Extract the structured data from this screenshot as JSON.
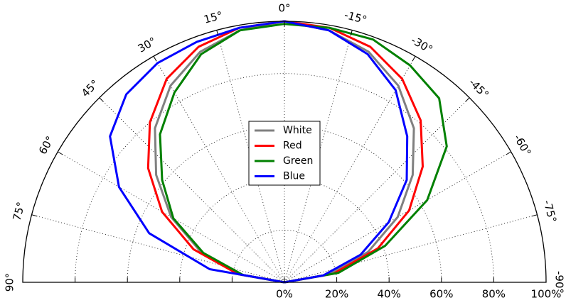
{
  "chart_data": {
    "type": "polar",
    "title": "",
    "angle_range_deg": [
      -90,
      90
    ],
    "radial_range_percent": [
      0,
      100
    ],
    "angle_ticks": [
      "90°",
      "75°",
      "60°",
      "45°",
      "30°",
      "15°",
      "0°",
      "-15°",
      "-30°",
      "-45°",
      "-60°",
      "-75°",
      "-90°"
    ],
    "radial_ticks": [
      "0%",
      "20%",
      "40%",
      "60%",
      "80%",
      "100%"
    ],
    "grid": true,
    "legend_position": "center",
    "series": [
      {
        "name": "White",
        "color": "#808080",
        "theta": [
          -90,
          -80,
          -70,
          -60,
          -50,
          -40,
          -30,
          -20,
          -10,
          0,
          10,
          20,
          30,
          40,
          50,
          60,
          70,
          80,
          90
        ],
        "r": [
          0,
          17,
          34,
          50,
          64,
          77,
          87,
          94,
          98,
          100,
          98,
          94,
          87,
          77,
          64,
          50,
          34,
          17,
          0
        ]
      },
      {
        "name": "Red",
        "color": "#ff0000",
        "theta": [
          -90,
          -80,
          -70,
          -60,
          -50,
          -40,
          -30,
          -20,
          -10,
          0,
          10,
          20,
          30,
          40,
          50,
          60,
          70,
          80,
          90
        ],
        "r": [
          0,
          19,
          38,
          55,
          69,
          81,
          90,
          96,
          99,
          100,
          99,
          96,
          90,
          80,
          68,
          54,
          37,
          18,
          0
        ]
      },
      {
        "name": "Green",
        "color": "#008000",
        "theta": [
          -90,
          -80,
          -70,
          -60,
          -50,
          -40,
          -30,
          -20,
          -10,
          0,
          10,
          20,
          30,
          40,
          50,
          60,
          70,
          80,
          90
        ],
        "r": [
          0,
          21,
          41,
          63,
          81,
          92,
          96,
          99,
          99,
          99,
          98,
          93,
          84,
          74,
          61,
          49,
          33,
          16,
          0
        ]
      },
      {
        "name": "Blue",
        "color": "#0000ff",
        "theta": [
          -90,
          -80,
          -70,
          -60,
          -50,
          -40,
          -30,
          -20,
          -10,
          0,
          10,
          20,
          30,
          40,
          50,
          60,
          70,
          80,
          90
        ],
        "r": [
          0,
          15,
          31,
          46,
          61,
          73,
          85,
          93,
          98,
          100,
          99,
          98,
          97,
          94,
          87,
          73,
          55,
          29,
          0
        ]
      }
    ]
  }
}
